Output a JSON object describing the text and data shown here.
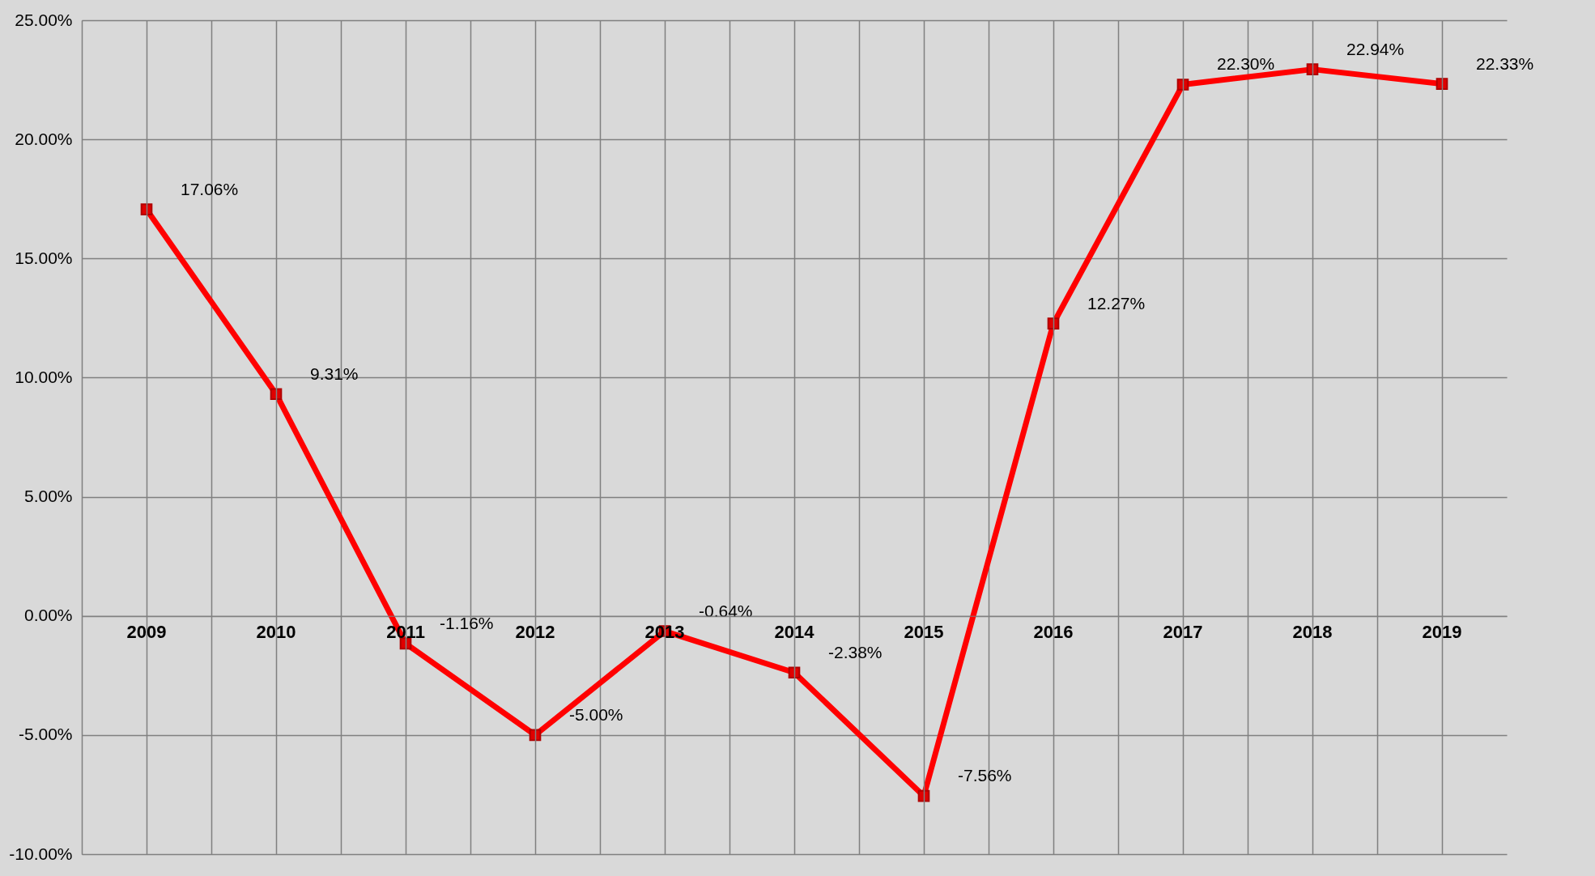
{
  "chart_data": {
    "type": "line",
    "categories": [
      "2009",
      "2010",
      "2011",
      "2012",
      "2013",
      "2014",
      "2015",
      "2016",
      "2017",
      "2018",
      "2019"
    ],
    "values": [
      17.06,
      9.31,
      -1.16,
      -5.0,
      -0.64,
      -2.38,
      -7.56,
      12.27,
      22.3,
      22.94,
      22.33
    ],
    "value_labels": [
      "17.06%",
      "9.31%",
      "-1.16%",
      "-5.00%",
      "-0.64%",
      "-2.38%",
      "-7.56%",
      "12.27%",
      "22.30%",
      "22.94%",
      "22.33%"
    ],
    "color": "#ff0000",
    "ylim": [
      -10,
      25
    ],
    "yticks": [
      {
        "value": -10,
        "label": "-10.00%"
      },
      {
        "value": -5,
        "label": "-5.00%"
      },
      {
        "value": 0,
        "label": "0.00%"
      },
      {
        "value": 5,
        "label": "5.00%"
      },
      {
        "value": 10,
        "label": "10.00%"
      },
      {
        "value": 15,
        "label": "15.00%"
      },
      {
        "value": 20,
        "label": "20.00%"
      },
      {
        "value": 25,
        "label": "25.00%"
      }
    ],
    "grid": true,
    "marker": "square",
    "line_style": "solid",
    "legend": false
  }
}
